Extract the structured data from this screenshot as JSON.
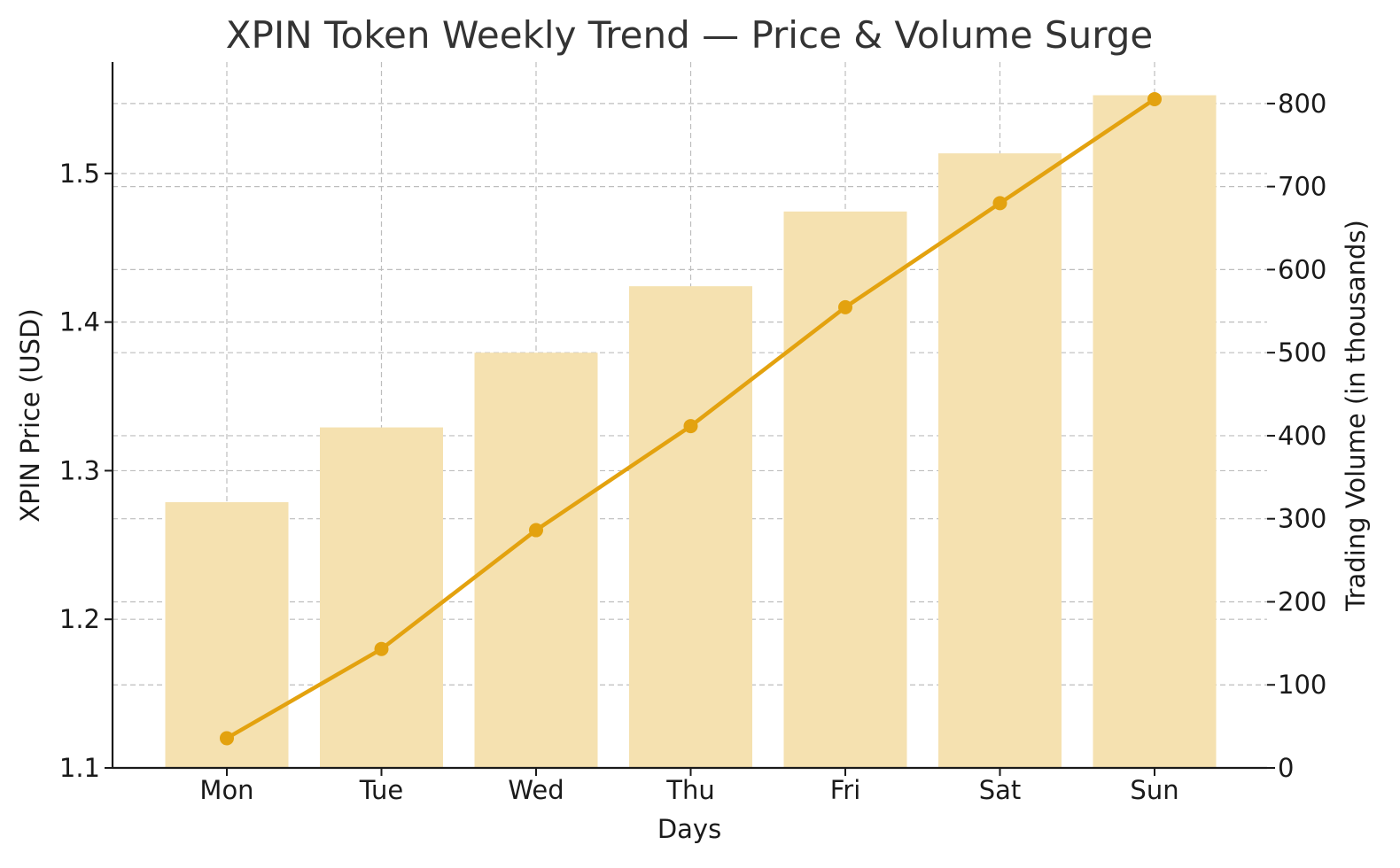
{
  "chart_data": {
    "type": "bar+line",
    "title": "XPIN Token Weekly Trend — Price & Volume Surge",
    "xlabel": "Days",
    "ylabel_left": "XPIN Price (USD)",
    "ylabel_right": "Trading Volume (in thousands)",
    "categories": [
      "Mon",
      "Tue",
      "Wed",
      "Thu",
      "Fri",
      "Sat",
      "Sun"
    ],
    "series": [
      {
        "type": "line",
        "axis": "left",
        "values": [
          1.12,
          1.18,
          1.26,
          1.33,
          1.41,
          1.48,
          1.55
        ],
        "color": "#e3a20f"
      },
      {
        "type": "bar",
        "axis": "right",
        "values": [
          320,
          410,
          500,
          580,
          670,
          740,
          810
        ],
        "color": "#f5e1b0"
      }
    ],
    "ylim_left": [
      1.1,
      1.575
    ],
    "yticks_left": [
      "1.1",
      "1.2",
      "1.3",
      "1.4",
      "1.5"
    ],
    "ylim_right": [
      0,
      850
    ],
    "yticks_right": [
      "0",
      "100",
      "200",
      "300",
      "400",
      "500",
      "600",
      "700",
      "800"
    ],
    "grid": true
  }
}
